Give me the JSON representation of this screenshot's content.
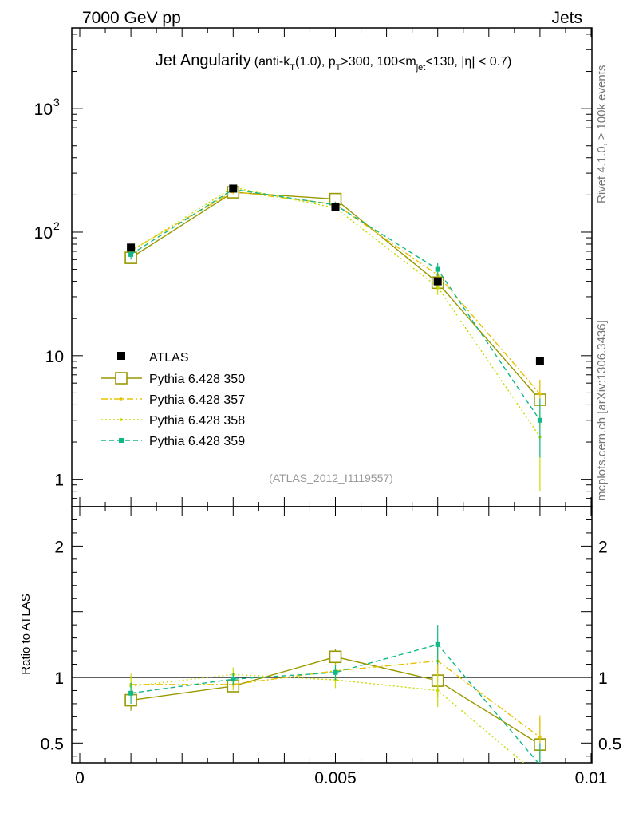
{
  "header": {
    "left": "7000 GeV pp",
    "right": "Jets"
  },
  "side_labels": {
    "rivet": "Rivet 4.1.0, ≥ 100k events",
    "mcplots": "mcplots.cern.ch [arXiv:1306.3436]"
  },
  "chart_data": {
    "type": "line",
    "title": {
      "main": "Jet Angularity",
      "sub": [
        {
          "t": "(anti-k",
          "s": "n"
        },
        {
          "t": "T",
          "s": "sub"
        },
        {
          "t": "(1.0), p",
          "s": "n"
        },
        {
          "t": "T",
          "s": "sub"
        },
        {
          "t": ">300, 100<m",
          "s": "n"
        },
        {
          "t": "jet",
          "s": "sub"
        },
        {
          "t": "<130, |η| < 0.7)",
          "s": "n"
        }
      ]
    },
    "analysis_id": "(ATLAS_2012_I1119557)",
    "xlim": [
      0,
      0.01
    ],
    "ylim": [
      0.6,
      4500
    ],
    "ratio_ylim": [
      0.35,
      2.3
    ],
    "ratio_ylabel": "Ratio to ATLAS",
    "x_ticks": [
      {
        "v": 0,
        "label": "0"
      },
      {
        "v": 0.005,
        "label": "0.005"
      },
      {
        "v": 0.01,
        "label": "0.01"
      }
    ],
    "y_ticks": [
      {
        "v": 1,
        "label": "1"
      },
      {
        "v": 10,
        "label": "10"
      },
      {
        "v": 100,
        "label": "10",
        "exp": "2"
      },
      {
        "v": 1000,
        "label": "10",
        "exp": "3"
      }
    ],
    "ratio_ticks": [
      {
        "v": 0.5,
        "label": "0.5"
      },
      {
        "v": 1,
        "label": "1"
      },
      {
        "v": 2,
        "label": "2"
      }
    ],
    "x": [
      0.001,
      0.003,
      0.005,
      0.007,
      0.009
    ],
    "data": {
      "name": "ATLAS",
      "values": [
        75,
        225,
        160,
        40,
        9.0
      ],
      "errors": [
        5,
        10,
        8,
        3,
        0.6
      ]
    },
    "series": [
      {
        "name": "Pythia 6.428 350",
        "color": "#999900",
        "style": "solid",
        "marker": "open-square",
        "values": [
          62,
          210,
          185,
          39,
          4.4
        ],
        "errors": [
          6,
          10,
          9,
          5,
          1.8
        ]
      },
      {
        "name": "Pythia 6.428 357",
        "color": "#e6c200",
        "style": "dashdot",
        "marker": "dot",
        "values": [
          71,
          213,
          168,
          45,
          4.9
        ],
        "errors": [
          6,
          10,
          9,
          5,
          1.5
        ]
      },
      {
        "name": "Pythia 6.428 358",
        "color": "#c8dc00",
        "style": "dotted",
        "marker": "dot",
        "values": [
          70,
          230,
          157,
          36,
          2.2
        ],
        "errors": [
          6,
          12,
          10,
          5,
          1.4
        ]
      },
      {
        "name": "Pythia 6.428 359",
        "color": "#10b888",
        "style": "dashed",
        "marker": "filled-square",
        "values": [
          66,
          222,
          166,
          50,
          3.0
        ],
        "errors": [
          6,
          10,
          9,
          6,
          1.5
        ]
      }
    ]
  }
}
